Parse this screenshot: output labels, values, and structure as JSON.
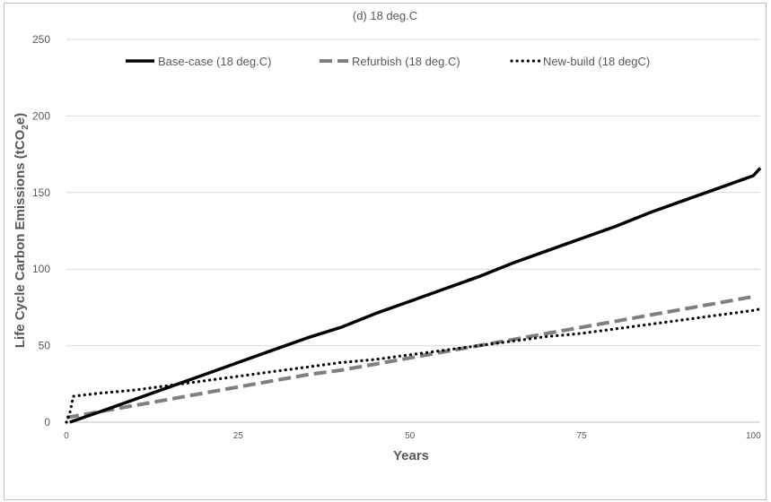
{
  "chart_data": {
    "type": "line",
    "title": "(d) 18 deg.C",
    "xlabel": "Years",
    "ylabel": "Life Cycle Carbon Emissions (tCO2e)",
    "ylabel_parts": {
      "main": "Life Cycle Carbon Emissions (tCO",
      "sub": "2",
      "tail": "e)"
    },
    "xlim": [
      0,
      101
    ],
    "ylim": [
      0,
      250
    ],
    "x_ticks": [
      0,
      25,
      50,
      75,
      100
    ],
    "y_ticks": [
      0,
      50,
      100,
      150,
      200,
      250
    ],
    "grid": "horizontal",
    "legend_position": "top",
    "series": [
      {
        "name": "Base-case (18 deg.C)",
        "color": "#000000",
        "style": "solid",
        "points": [
          [
            0.5,
            0
          ],
          [
            5,
            7
          ],
          [
            10,
            15
          ],
          [
            15,
            23
          ],
          [
            20,
            31
          ],
          [
            25,
            39
          ],
          [
            30,
            47
          ],
          [
            35,
            55
          ],
          [
            40,
            62
          ],
          [
            45,
            71
          ],
          [
            50,
            79
          ],
          [
            55,
            87
          ],
          [
            60,
            95
          ],
          [
            65,
            104
          ],
          [
            70,
            112
          ],
          [
            75,
            120
          ],
          [
            80,
            128
          ],
          [
            85,
            137
          ],
          [
            90,
            145
          ],
          [
            95,
            153
          ],
          [
            100,
            161
          ],
          [
            101,
            166
          ]
        ]
      },
      {
        "name": "Refurbish (18 deg.C)",
        "color": "#7f7f7f",
        "style": "dashed",
        "points": [
          [
            0,
            3
          ],
          [
            5,
            7
          ],
          [
            10,
            11
          ],
          [
            15,
            15
          ],
          [
            20,
            19
          ],
          [
            25,
            23
          ],
          [
            30,
            27
          ],
          [
            35,
            31
          ],
          [
            40,
            34
          ],
          [
            45,
            38
          ],
          [
            50,
            42
          ],
          [
            55,
            46
          ],
          [
            60,
            50
          ],
          [
            65,
            54
          ],
          [
            70,
            58
          ],
          [
            75,
            62
          ],
          [
            80,
            66
          ],
          [
            85,
            70
          ],
          [
            90,
            74
          ],
          [
            95,
            78
          ],
          [
            100,
            82
          ]
        ]
      },
      {
        "name": "New-build (18 degC)",
        "color": "#000000",
        "style": "dotted",
        "points": [
          [
            0,
            0
          ],
          [
            0.5,
            6
          ],
          [
            1,
            17
          ],
          [
            5,
            19
          ],
          [
            10,
            21
          ],
          [
            15,
            24
          ],
          [
            20,
            27
          ],
          [
            25,
            30
          ],
          [
            30,
            33
          ],
          [
            35,
            36
          ],
          [
            40,
            39
          ],
          [
            45,
            41
          ],
          [
            50,
            44
          ],
          [
            55,
            47
          ],
          [
            60,
            50
          ],
          [
            65,
            53
          ],
          [
            70,
            56
          ],
          [
            75,
            58
          ],
          [
            80,
            61
          ],
          [
            85,
            64
          ],
          [
            90,
            67
          ],
          [
            95,
            70
          ],
          [
            100,
            73
          ],
          [
            101,
            74
          ]
        ]
      }
    ]
  }
}
